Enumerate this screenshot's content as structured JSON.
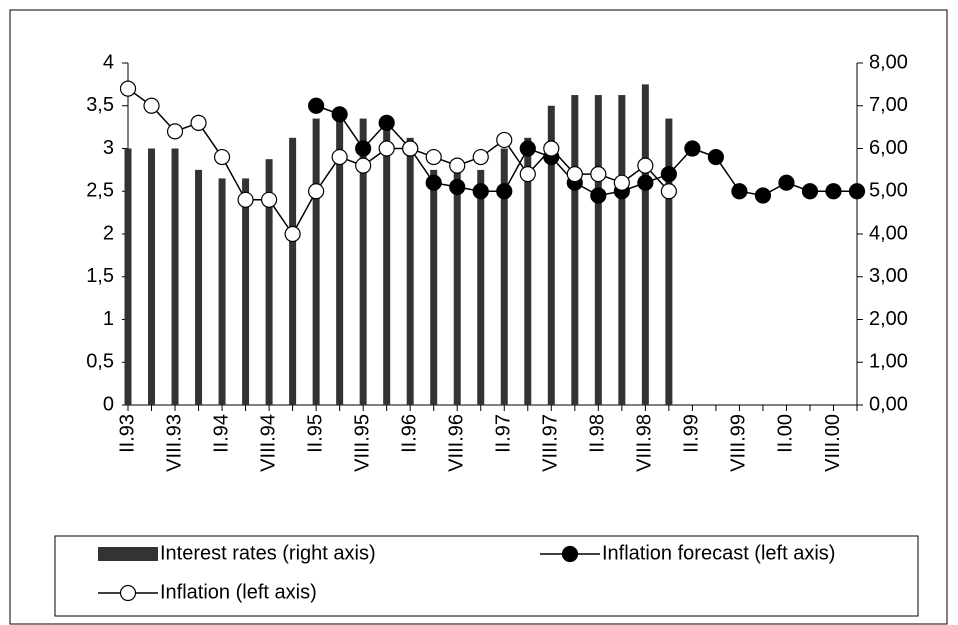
{
  "chart_data": {
    "type": "bar-line",
    "categories": [
      "II.93",
      null,
      "VIII.93",
      null,
      "II.94",
      null,
      "VIII.94",
      null,
      "II.95",
      null,
      "VIII.95",
      null,
      "II.96",
      null,
      "VIII.96",
      null,
      "II.97",
      null,
      "VIII.97",
      null,
      "II.98",
      null,
      "VIII.98",
      null,
      "II.99",
      null,
      "VIII.99",
      null,
      "II.00",
      null,
      "VIII.00",
      null
    ],
    "ylim": [
      0,
      4
    ],
    "yticks": [
      0,
      {
        "value": 0.5,
        "label": "0,5"
      },
      1,
      {
        "value": 1.5,
        "label": "1,5"
      },
      2,
      {
        "value": 2.5,
        "label": "2,5"
      },
      3,
      {
        "value": 3.5,
        "label": "3,5"
      },
      4
    ],
    "y2lim": [
      0,
      8
    ],
    "y2ticks": [
      {
        "value": 0,
        "label": "0,00"
      },
      {
        "value": 1,
        "label": "1,00"
      },
      {
        "value": 2,
        "label": "2,00"
      },
      {
        "value": 3,
        "label": "3,00"
      },
      {
        "value": 4,
        "label": "4,00"
      },
      {
        "value": 5,
        "label": "5,00"
      },
      {
        "value": 6,
        "label": "6,00"
      },
      {
        "value": 7,
        "label": "7,00"
      },
      {
        "value": 8,
        "label": "8,00"
      }
    ],
    "series": [
      {
        "name": "Interest rates (right axis)",
        "type": "bar",
        "axis": "y2",
        "color": "#333333",
        "values": [
          6.0,
          6.0,
          6.0,
          5.5,
          5.3,
          5.3,
          5.75,
          6.25,
          6.7,
          6.7,
          6.7,
          6.7,
          6.25,
          5.5,
          5.5,
          5.5,
          6.0,
          6.25,
          7.0,
          7.25,
          7.25,
          7.25,
          7.5,
          6.7,
          null,
          null,
          null,
          null,
          null,
          null,
          null,
          null
        ]
      },
      {
        "name": "Inflation forecast (left axis)",
        "type": "line",
        "color": "#000000",
        "values": [
          null,
          null,
          null,
          null,
          null,
          null,
          null,
          null,
          3.5,
          3.4,
          3.0,
          3.3,
          3.0,
          2.6,
          2.55,
          2.5,
          2.5,
          3.0,
          2.9,
          2.6,
          2.45,
          2.5,
          2.6,
          2.7,
          3.0,
          2.9,
          2.5,
          2.45,
          2.6,
          2.5,
          2.5,
          2.5
        ]
      },
      {
        "name": "Inflation (left axis)",
        "type": "line",
        "color": "#ffffff",
        "values": [
          3.7,
          3.5,
          3.2,
          3.3,
          2.9,
          2.4,
          2.4,
          2.0,
          2.5,
          2.9,
          2.8,
          3.0,
          3.0,
          2.9,
          2.8,
          2.9,
          3.1,
          2.7,
          3.0,
          2.7,
          2.7,
          2.6,
          2.8,
          2.5,
          null,
          null,
          null,
          null,
          null,
          null,
          null,
          null
        ]
      }
    ]
  }
}
